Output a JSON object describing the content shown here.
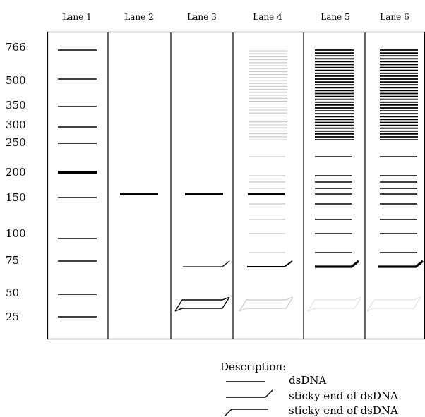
{
  "lanes": [
    "Lane 1",
    "Lane 2",
    "Lane 3",
    "Lane 4",
    "Lane 5",
    "Lane 6"
  ],
  "ladder_sizes": [
    "766",
    "500",
    "350",
    "300",
    "250",
    "200",
    "150",
    "100",
    "75",
    "50",
    "25"
  ],
  "legend": {
    "title": "Description:",
    "items": [
      "dsDNA",
      "sticky end of dsDNA",
      "sticky end of dsDNA"
    ]
  },
  "colors": {
    "band_dark": "#000000",
    "band_faint": "#c8c8c8",
    "band_very_faint": "#dedede",
    "frame": "#000000"
  }
}
